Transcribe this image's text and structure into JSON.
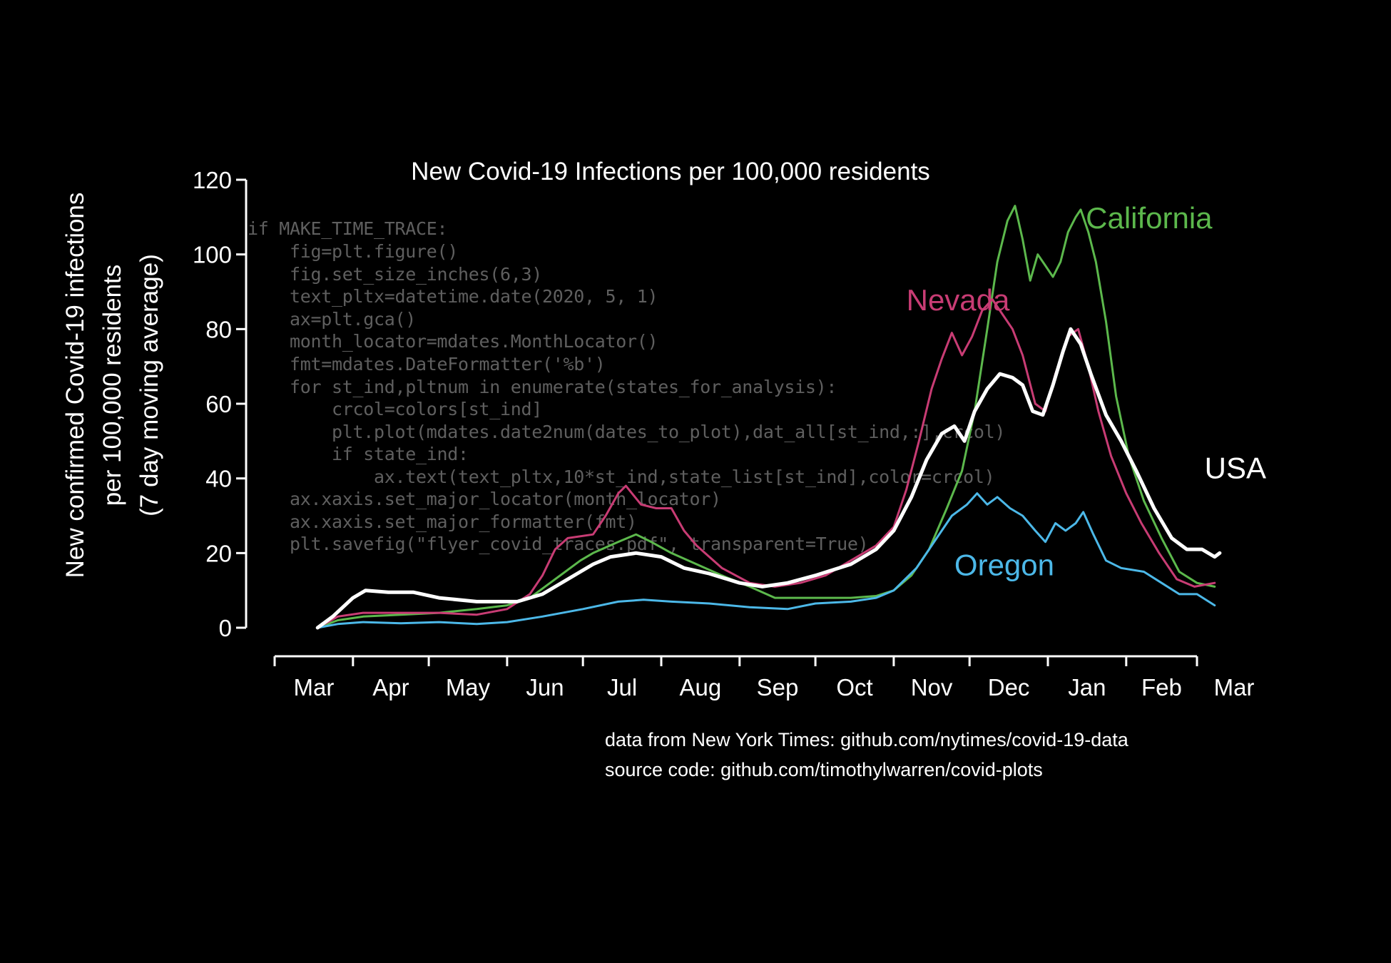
{
  "chart_data": {
    "type": "line",
    "title": "New Covid-19 Infections per 100,000 residents",
    "ylabel_lines": [
      "New confirmed Covid-19 infections",
      "per 100,000 residents",
      "(7 day moving average)"
    ],
    "xlabel": "",
    "x_unit": "date",
    "xlim": [
      "2020-03-01",
      "2021-03-01"
    ],
    "ylim": [
      0,
      120
    ],
    "yticks": [
      0,
      20,
      40,
      60,
      80,
      100,
      120
    ],
    "xtick_labels": [
      "Mar",
      "Apr",
      "May",
      "Jun",
      "Jul",
      "Aug",
      "Sep",
      "Oct",
      "Nov",
      "Dec",
      "Jan",
      "Feb",
      "Mar"
    ],
    "xtick_dates": [
      "2020-03-01",
      "2020-04-01",
      "2020-05-01",
      "2020-06-01",
      "2020-07-01",
      "2020-08-01",
      "2020-09-01",
      "2020-10-01",
      "2020-11-01",
      "2020-12-01",
      "2021-01-01",
      "2021-02-01",
      "2021-03-01"
    ],
    "grid": false,
    "legend": "inline labels",
    "series": [
      {
        "name": "California",
        "color": "#5cb84c",
        "width": 3,
        "points": [
          [
            "2020-03-18",
            0
          ],
          [
            "2020-03-26",
            2
          ],
          [
            "2020-04-05",
            3
          ],
          [
            "2020-04-20",
            3.5
          ],
          [
            "2020-05-05",
            4
          ],
          [
            "2020-05-20",
            5
          ],
          [
            "2020-06-01",
            6
          ],
          [
            "2020-06-10",
            8
          ],
          [
            "2020-06-20",
            13
          ],
          [
            "2020-06-30",
            18
          ],
          [
            "2020-07-05",
            20
          ],
          [
            "2020-07-15",
            23
          ],
          [
            "2020-07-22",
            25
          ],
          [
            "2020-07-28",
            23
          ],
          [
            "2020-08-05",
            20
          ],
          [
            "2020-08-15",
            17
          ],
          [
            "2020-08-25",
            14
          ],
          [
            "2020-09-05",
            11
          ],
          [
            "2020-09-15",
            8
          ],
          [
            "2020-09-25",
            8
          ],
          [
            "2020-10-05",
            8
          ],
          [
            "2020-10-15",
            8
          ],
          [
            "2020-10-25",
            8.5
          ],
          [
            "2020-11-01",
            10
          ],
          [
            "2020-11-08",
            14
          ],
          [
            "2020-11-15",
            21
          ],
          [
            "2020-11-22",
            32
          ],
          [
            "2020-11-28",
            42
          ],
          [
            "2020-12-03",
            58
          ],
          [
            "2020-12-08",
            80
          ],
          [
            "2020-12-12",
            98
          ],
          [
            "2020-12-16",
            109
          ],
          [
            "2020-12-19",
            113
          ],
          [
            "2020-12-22",
            104
          ],
          [
            "2020-12-25",
            93
          ],
          [
            "2020-12-28",
            100
          ],
          [
            "2020-12-31",
            97
          ],
          [
            "2021-01-03",
            94
          ],
          [
            "2021-01-06",
            98
          ],
          [
            "2021-01-09",
            106
          ],
          [
            "2021-01-12",
            110
          ],
          [
            "2021-01-14",
            112
          ],
          [
            "2021-01-17",
            106
          ],
          [
            "2021-01-20",
            98
          ],
          [
            "2021-01-24",
            82
          ],
          [
            "2021-01-28",
            62
          ],
          [
            "2021-02-02",
            46
          ],
          [
            "2021-02-08",
            34
          ],
          [
            "2021-02-15",
            24
          ],
          [
            "2021-02-22",
            15
          ],
          [
            "2021-03-01",
            12
          ],
          [
            "2021-03-08",
            11
          ]
        ]
      },
      {
        "name": "Nevada",
        "color": "#c83c74",
        "width": 3,
        "points": [
          [
            "2020-03-18",
            0
          ],
          [
            "2020-03-26",
            3
          ],
          [
            "2020-04-05",
            4
          ],
          [
            "2020-04-20",
            4
          ],
          [
            "2020-05-05",
            4
          ],
          [
            "2020-05-20",
            3.5
          ],
          [
            "2020-06-01",
            5
          ],
          [
            "2020-06-10",
            9
          ],
          [
            "2020-06-15",
            14
          ],
          [
            "2020-06-20",
            21
          ],
          [
            "2020-06-25",
            24
          ],
          [
            "2020-07-05",
            25
          ],
          [
            "2020-07-10",
            30
          ],
          [
            "2020-07-15",
            36
          ],
          [
            "2020-07-18",
            38
          ],
          [
            "2020-07-24",
            33
          ],
          [
            "2020-07-30",
            32
          ],
          [
            "2020-08-05",
            32
          ],
          [
            "2020-08-10",
            26
          ],
          [
            "2020-08-15",
            22
          ],
          [
            "2020-08-25",
            16
          ],
          [
            "2020-09-05",
            12
          ],
          [
            "2020-09-15",
            11
          ],
          [
            "2020-09-25",
            12
          ],
          [
            "2020-10-05",
            14
          ],
          [
            "2020-10-15",
            18
          ],
          [
            "2020-10-25",
            22
          ],
          [
            "2020-11-01",
            27
          ],
          [
            "2020-11-06",
            37
          ],
          [
            "2020-11-11",
            50
          ],
          [
            "2020-11-16",
            64
          ],
          [
            "2020-11-20",
            72
          ],
          [
            "2020-11-24",
            79
          ],
          [
            "2020-11-28",
            73
          ],
          [
            "2020-12-02",
            78
          ],
          [
            "2020-12-06",
            85
          ],
          [
            "2020-12-10",
            88
          ],
          [
            "2020-12-14",
            84
          ],
          [
            "2020-12-18",
            80
          ],
          [
            "2020-12-22",
            73
          ],
          [
            "2020-12-27",
            60
          ],
          [
            "2020-12-31",
            58
          ],
          [
            "2021-01-04",
            68
          ],
          [
            "2021-01-09",
            78
          ],
          [
            "2021-01-13",
            80
          ],
          [
            "2021-01-17",
            70
          ],
          [
            "2021-01-21",
            58
          ],
          [
            "2021-01-26",
            46
          ],
          [
            "2021-02-01",
            36
          ],
          [
            "2021-02-07",
            28
          ],
          [
            "2021-02-14",
            20
          ],
          [
            "2021-02-21",
            13
          ],
          [
            "2021-02-28",
            11
          ],
          [
            "2021-03-08",
            12
          ]
        ]
      },
      {
        "name": "Oregon",
        "color": "#4cb8e8",
        "width": 3,
        "points": [
          [
            "2020-03-18",
            0
          ],
          [
            "2020-03-26",
            1
          ],
          [
            "2020-04-05",
            1.5
          ],
          [
            "2020-04-20",
            1.2
          ],
          [
            "2020-05-05",
            1.5
          ],
          [
            "2020-05-20",
            1
          ],
          [
            "2020-06-01",
            1.5
          ],
          [
            "2020-06-15",
            3
          ],
          [
            "2020-07-01",
            5
          ],
          [
            "2020-07-15",
            7
          ],
          [
            "2020-07-25",
            7.5
          ],
          [
            "2020-08-05",
            7
          ],
          [
            "2020-08-20",
            6.5
          ],
          [
            "2020-09-05",
            5.5
          ],
          [
            "2020-09-20",
            5
          ],
          [
            "2020-10-01",
            6.5
          ],
          [
            "2020-10-15",
            7
          ],
          [
            "2020-10-25",
            8
          ],
          [
            "2020-11-01",
            10
          ],
          [
            "2020-11-10",
            16
          ],
          [
            "2020-11-18",
            24
          ],
          [
            "2020-11-24",
            30
          ],
          [
            "2020-11-30",
            33
          ],
          [
            "2020-12-04",
            36
          ],
          [
            "2020-12-08",
            33
          ],
          [
            "2020-12-12",
            35
          ],
          [
            "2020-12-17",
            32
          ],
          [
            "2020-12-22",
            30
          ],
          [
            "2020-12-27",
            26
          ],
          [
            "2020-12-31",
            23
          ],
          [
            "2021-01-04",
            28
          ],
          [
            "2021-01-08",
            26
          ],
          [
            "2021-01-12",
            28
          ],
          [
            "2021-01-15",
            31
          ],
          [
            "2021-01-19",
            25
          ],
          [
            "2021-01-24",
            18
          ],
          [
            "2021-01-30",
            16
          ],
          [
            "2021-02-08",
            15
          ],
          [
            "2021-02-15",
            12
          ],
          [
            "2021-02-22",
            9
          ],
          [
            "2021-03-01",
            9
          ],
          [
            "2021-03-08",
            6
          ]
        ]
      },
      {
        "name": "USA",
        "color": "#ffffff",
        "width": 5,
        "points": [
          [
            "2020-03-18",
            0
          ],
          [
            "2020-03-24",
            3
          ],
          [
            "2020-04-01",
            8
          ],
          [
            "2020-04-06",
            10
          ],
          [
            "2020-04-15",
            9.5
          ],
          [
            "2020-04-25",
            9.5
          ],
          [
            "2020-05-05",
            8
          ],
          [
            "2020-05-20",
            7
          ],
          [
            "2020-06-05",
            7
          ],
          [
            "2020-06-15",
            9
          ],
          [
            "2020-06-25",
            13
          ],
          [
            "2020-07-05",
            17
          ],
          [
            "2020-07-12",
            19
          ],
          [
            "2020-07-22",
            20
          ],
          [
            "2020-08-01",
            19
          ],
          [
            "2020-08-10",
            16
          ],
          [
            "2020-08-20",
            14.5
          ],
          [
            "2020-09-01",
            12
          ],
          [
            "2020-09-10",
            11
          ],
          [
            "2020-09-20",
            12
          ],
          [
            "2020-10-01",
            14
          ],
          [
            "2020-10-15",
            17
          ],
          [
            "2020-10-25",
            21
          ],
          [
            "2020-11-01",
            26
          ],
          [
            "2020-11-08",
            35
          ],
          [
            "2020-11-14",
            45
          ],
          [
            "2020-11-20",
            52
          ],
          [
            "2020-11-25",
            54
          ],
          [
            "2020-11-29",
            50
          ],
          [
            "2020-12-03",
            58
          ],
          [
            "2020-12-08",
            64
          ],
          [
            "2020-12-13",
            68
          ],
          [
            "2020-12-18",
            67
          ],
          [
            "2020-12-22",
            65
          ],
          [
            "2020-12-26",
            58
          ],
          [
            "2020-12-30",
            57
          ],
          [
            "2021-01-03",
            65
          ],
          [
            "2021-01-07",
            74
          ],
          [
            "2021-01-10",
            80
          ],
          [
            "2021-01-14",
            76
          ],
          [
            "2021-01-18",
            68
          ],
          [
            "2021-01-24",
            57
          ],
          [
            "2021-01-30",
            50
          ],
          [
            "2021-02-05",
            42
          ],
          [
            "2021-02-12",
            32
          ],
          [
            "2021-02-19",
            24
          ],
          [
            "2021-02-25",
            21
          ],
          [
            "2021-03-03",
            21
          ],
          [
            "2021-03-08",
            19
          ],
          [
            "2021-03-10",
            20
          ]
        ]
      }
    ],
    "annotations": [
      {
        "text": "California",
        "color": "#5cb84c",
        "x": "2021-01-16",
        "y": 107
      },
      {
        "text": "Nevada",
        "color": "#c83c74",
        "x": "2020-11-06",
        "y": 85
      },
      {
        "text": "USA",
        "color": "#ffffff",
        "x": "2021-03-04",
        "y": 40
      },
      {
        "text": "Oregon",
        "color": "#4cb8e8",
        "x": "2020-11-25",
        "y": 14
      }
    ]
  },
  "code_lines": [
    "if MAKE_TIME_TRACE:",
    "    fig=plt.figure()",
    "    fig.set_size_inches(6,3)",
    "    text_pltx=datetime.date(2020, 5, 1)",
    "    ax=plt.gca()",
    "    month_locator=mdates.MonthLocator()",
    "    fmt=mdates.DateFormatter('%b')",
    "    for st_ind,pltnum in enumerate(states_for_analysis):",
    "        crcol=colors[st_ind]",
    "        plt.plot(mdates.date2num(dates_to_plot),dat_all[st_ind,:],crcol)",
    "        if state_ind:",
    "            ax.text(text_pltx,10*st_ind,state_list[st_ind],color=crcol)",
    "    ax.xaxis.set_major_locator(month_locator)",
    "    ax.xaxis.set_major_formatter(fmt)",
    "    plt.savefig(\"flyer_covid_traces.pdf\", transparent=True)"
  ],
  "credits": {
    "data": "data from New York Times: github.com/nytimes/covid-19-data",
    "source": "source code: github.com/timothylwarren/covid-plots"
  }
}
